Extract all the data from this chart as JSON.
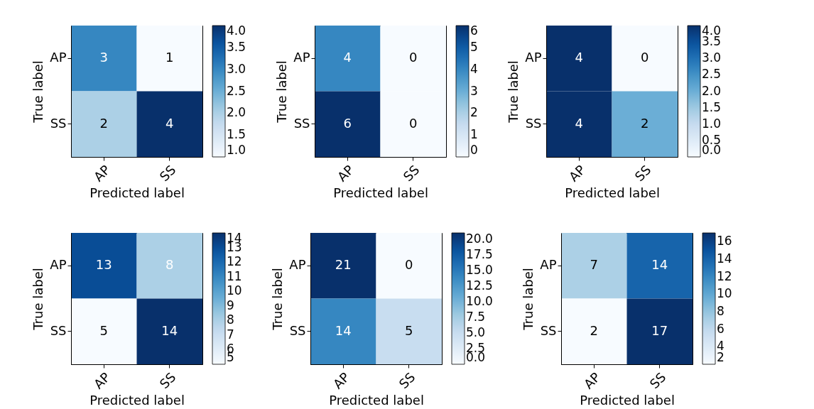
{
  "chart_data": [
    {
      "type": "heatmap",
      "categories": [
        "AP",
        "SS"
      ],
      "y_categories": [
        "AP",
        "SS"
      ],
      "cells": [
        [
          3,
          1
        ],
        [
          2,
          4
        ]
      ],
      "xlabel": "Predicted label",
      "ylabel": "True label",
      "data_labels": true,
      "clim": [
        1,
        4
      ],
      "cticks": [
        {
          "value": 1,
          "label": "1.0"
        },
        {
          "value": 1.5,
          "label": "1.5"
        },
        {
          "value": 2,
          "label": "2.0"
        },
        {
          "value": 2.5,
          "label": "2.5"
        },
        {
          "value": 3,
          "label": "3.0"
        },
        {
          "value": 3.5,
          "label": "3.5"
        },
        {
          "value": 4,
          "label": "4.0"
        }
      ]
    },
    {
      "type": "heatmap",
      "categories": [
        "AP",
        "SS"
      ],
      "y_categories": [
        "AP",
        "SS"
      ],
      "cells": [
        [
          4,
          0
        ],
        [
          6,
          0
        ]
      ],
      "xlabel": "Predicted label",
      "ylabel": "True label",
      "data_labels": true,
      "clim": [
        0,
        6
      ],
      "cticks": [
        0,
        1,
        2,
        3,
        4,
        5,
        6
      ]
    },
    {
      "type": "heatmap",
      "categories": [
        "AP",
        "SS"
      ],
      "y_categories": [
        "AP",
        "SS"
      ],
      "cells": [
        [
          4,
          0
        ],
        [
          4,
          2
        ]
      ],
      "xlabel": "Predicted label",
      "ylabel": "True label",
      "data_labels": true,
      "clim": [
        0,
        4
      ],
      "cticks": [
        {
          "value": 0,
          "label": "0.0"
        },
        {
          "value": 0.5,
          "label": "0.5"
        },
        {
          "value": 1,
          "label": "1.0"
        },
        {
          "value": 1.5,
          "label": "1.5"
        },
        {
          "value": 2,
          "label": "2.0"
        },
        {
          "value": 2.5,
          "label": "2.5"
        },
        {
          "value": 3,
          "label": "3.0"
        },
        {
          "value": 3.5,
          "label": "3.5"
        },
        {
          "value": 4,
          "label": "4.0"
        }
      ]
    },
    {
      "type": "heatmap",
      "categories": [
        "AP",
        "SS"
      ],
      "y_categories": [
        "AP",
        "SS"
      ],
      "cells": [
        [
          13,
          8
        ],
        [
          5,
          14
        ]
      ],
      "xlabel": "Predicted label",
      "ylabel": "True label",
      "data_labels": true,
      "clim": [
        5,
        14
      ],
      "cticks": [
        5,
        6,
        7,
        8,
        9,
        10,
        11,
        12,
        13,
        14
      ]
    },
    {
      "type": "heatmap",
      "categories": [
        "AP",
        "SS"
      ],
      "y_categories": [
        "AP",
        "SS"
      ],
      "cells": [
        [
          21,
          0
        ],
        [
          14,
          5
        ]
      ],
      "xlabel": "Predicted label",
      "ylabel": "True label",
      "data_labels": true,
      "clim": [
        0,
        21
      ],
      "cticks": [
        {
          "value": 0,
          "label": "0.0"
        },
        {
          "value": 2.5,
          "label": "2.5"
        },
        {
          "value": 5,
          "label": "5.0"
        },
        {
          "value": 7.5,
          "label": "7.5"
        },
        {
          "value": 10,
          "label": "10.0"
        },
        {
          "value": 12.5,
          "label": "12.5"
        },
        {
          "value": 15,
          "label": "15.0"
        },
        {
          "value": 17.5,
          "label": "17.5"
        },
        {
          "value": 20,
          "label": "20.0"
        }
      ]
    },
    {
      "type": "heatmap",
      "categories": [
        "AP",
        "SS"
      ],
      "y_categories": [
        "AP",
        "SS"
      ],
      "cells": [
        [
          7,
          14
        ],
        [
          2,
          17
        ]
      ],
      "xlabel": "Predicted label",
      "ylabel": "True label",
      "data_labels": true,
      "clim": [
        2,
        17
      ],
      "cticks": [
        2,
        4,
        6,
        8,
        10,
        12,
        14,
        16
      ]
    }
  ]
}
